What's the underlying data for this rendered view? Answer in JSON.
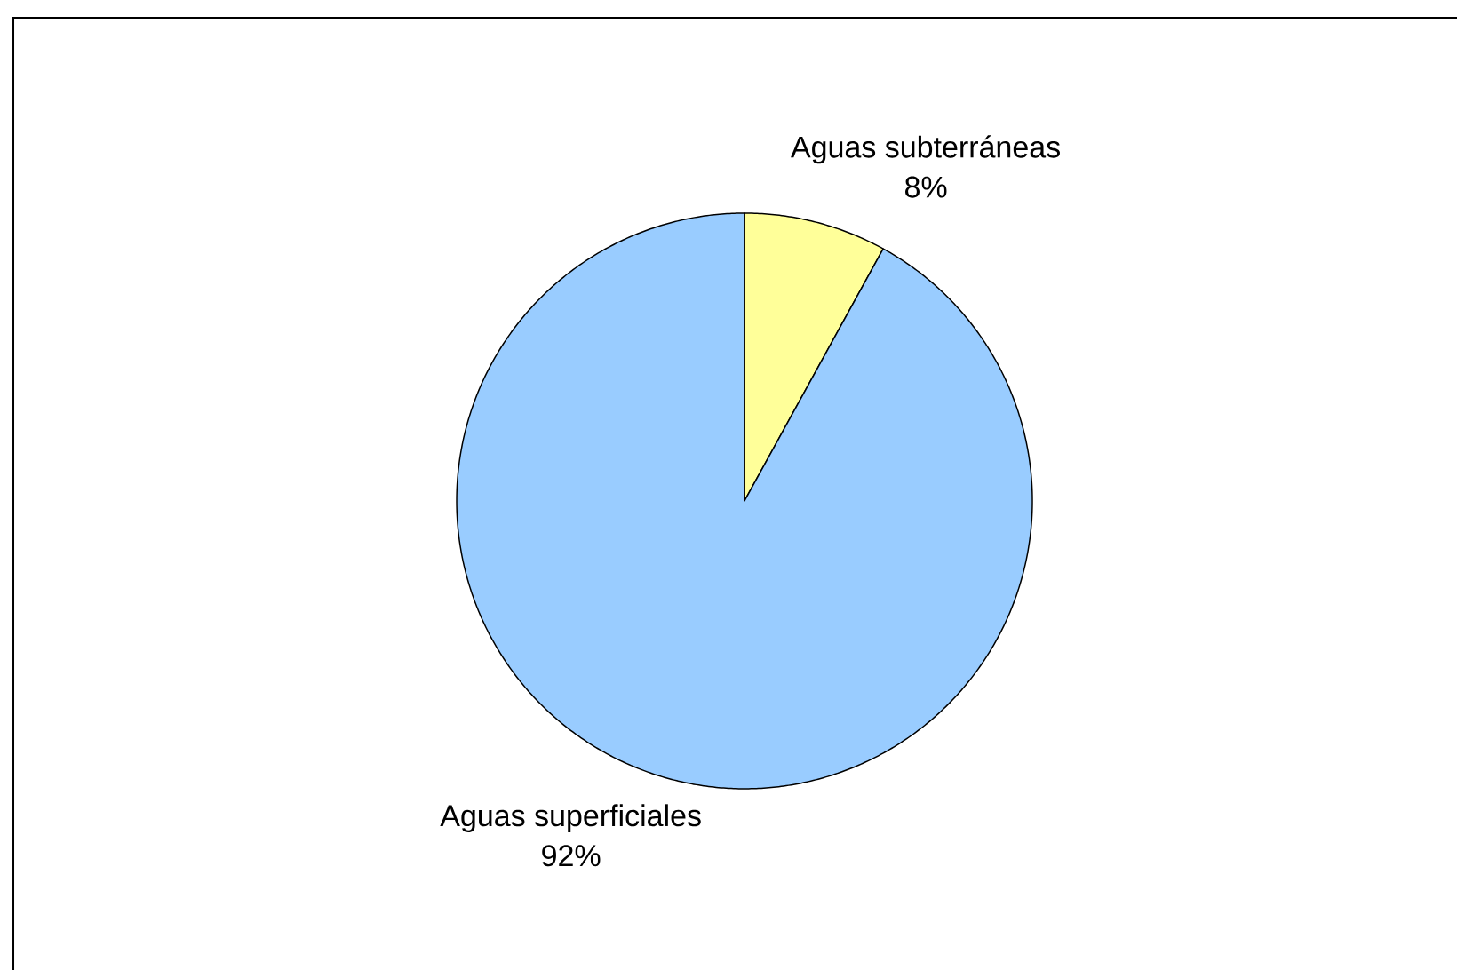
{
  "chart_data": {
    "type": "pie",
    "categories": [
      "Aguas subterráneas",
      "Aguas superficiales"
    ],
    "values": [
      8,
      92
    ],
    "value_labels": [
      "8%",
      "92%"
    ],
    "colors": [
      "#ffff99",
      "#99ccff"
    ]
  }
}
